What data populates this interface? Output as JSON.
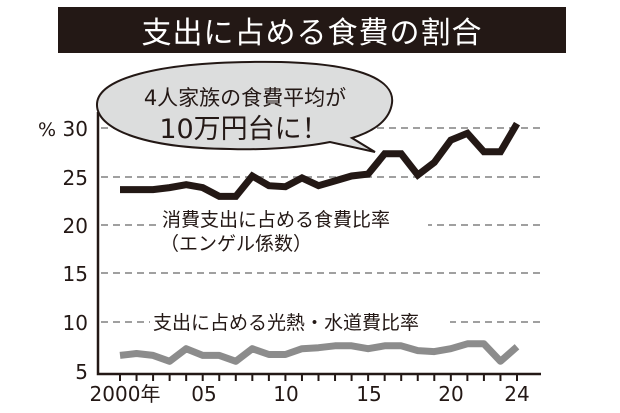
{
  "title": "支出に占める食費の割合",
  "bubble": {
    "line1": "4人家族の食費平均が",
    "line2": "10万円台に！"
  },
  "y_axis": {
    "unit": "%",
    "ticks": [
      "30",
      "25",
      "20",
      "15",
      "10",
      "5"
    ]
  },
  "x_axis": {
    "tick_labels": [
      "2000年",
      "05",
      "10",
      "15",
      "20",
      "24"
    ]
  },
  "series_labels": {
    "engel_line1": "消費支出に占める食費比率",
    "engel_line2": "（エンゲル係数）",
    "utilities": "支出に占める光熱・水道費比率"
  },
  "colors": {
    "title_bg": "#231815",
    "engel_line": "#231815",
    "utilities_line": "#8c8c8c",
    "bubble_fill": "#dcdddd",
    "grid": "#a0a0a0"
  },
  "chart_data": {
    "type": "line",
    "title": "支出に占める食費の割合",
    "xlabel": "年",
    "ylabel": "%",
    "ylim": [
      5,
      30
    ],
    "grid": true,
    "x": [
      2000,
      2001,
      2002,
      2003,
      2004,
      2005,
      2006,
      2007,
      2008,
      2009,
      2010,
      2011,
      2012,
      2013,
      2014,
      2015,
      2016,
      2017,
      2018,
      2019,
      2020,
      2021,
      2022,
      2023,
      2024
    ],
    "series": [
      {
        "name": "消費支出に占める食費比率（エンゲル係数）",
        "values": [
          23.6,
          23.6,
          23.6,
          23.8,
          24.1,
          23.8,
          22.9,
          22.9,
          25.0,
          24.0,
          23.9,
          24.8,
          24.0,
          24.5,
          25.0,
          25.2,
          27.3,
          27.3,
          25.1,
          26.4,
          28.7,
          29.4,
          27.5,
          27.5,
          30.4
        ]
      },
      {
        "name": "支出に占める光熱・水道費比率",
        "values": [
          6.5,
          6.7,
          6.5,
          5.9,
          7.2,
          6.5,
          6.5,
          5.9,
          7.2,
          6.6,
          6.6,
          7.2,
          7.3,
          7.5,
          7.5,
          7.2,
          7.5,
          7.5,
          7.0,
          6.9,
          7.2,
          7.7,
          7.7,
          5.9,
          7.4
        ]
      }
    ],
    "annotations": [
      "4人家族の食費平均が10万円台に！"
    ]
  }
}
